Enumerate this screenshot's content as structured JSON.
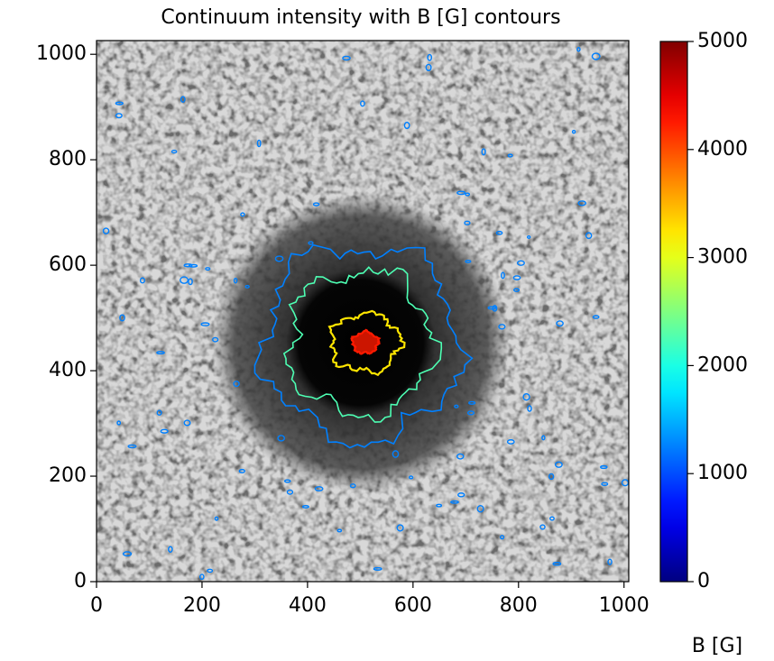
{
  "chart_data": {
    "type": "image_contour",
    "title": "Continuum intensity with B [G] contours",
    "xlim": [
      0,
      1009
    ],
    "xticks": [
      0,
      200,
      400,
      600,
      800,
      1000
    ],
    "ylim": [
      0,
      1026
    ],
    "yticks": [
      0,
      200,
      400,
      600,
      800,
      1000
    ],
    "contour_levels": [
      1250,
      2250,
      3250,
      4250
    ],
    "colorbar": {
      "label": "B [G]",
      "lim": [
        0,
        5000
      ],
      "ticks": [
        0,
        1000,
        2000,
        3000,
        4000,
        5000
      ],
      "colormap": "jet"
    }
  }
}
